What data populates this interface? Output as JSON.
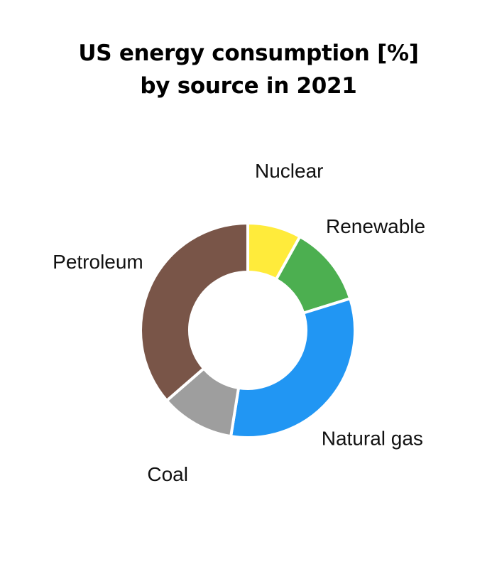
{
  "chart_data": {
    "type": "pie",
    "variant": "donut",
    "title_lines": [
      "US energy consumption [%]",
      "by source in 2021"
    ],
    "categories": [
      "Nuclear",
      "Renewable",
      "Natural gas",
      "Coal",
      "Petroleum"
    ],
    "values": [
      8,
      12,
      32,
      11,
      36
    ],
    "colors": [
      "#FFEB3B",
      "#4CAF50",
      "#2196F3",
      "#9E9E9E",
      "#795548"
    ],
    "legend": "labels placed outside slices",
    "slice_separator_color": "#FFFFFF"
  }
}
